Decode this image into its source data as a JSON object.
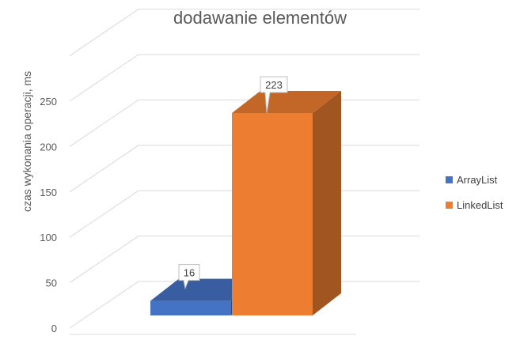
{
  "chart_data": {
    "type": "bar",
    "title": "dodawanie elementów",
    "ylabel": "czas wykonania operacji, ms",
    "xlabel": "",
    "ylim": [
      0,
      300
    ],
    "yticks": [
      0,
      50,
      100,
      150,
      200,
      250
    ],
    "grid": true,
    "legend_position": "right",
    "style": "3d",
    "series": [
      {
        "name": "ArrayList",
        "value": 16,
        "color": "#4472c4"
      },
      {
        "name": "LinkedList",
        "value": 223,
        "color": "#ed7d31"
      }
    ]
  }
}
